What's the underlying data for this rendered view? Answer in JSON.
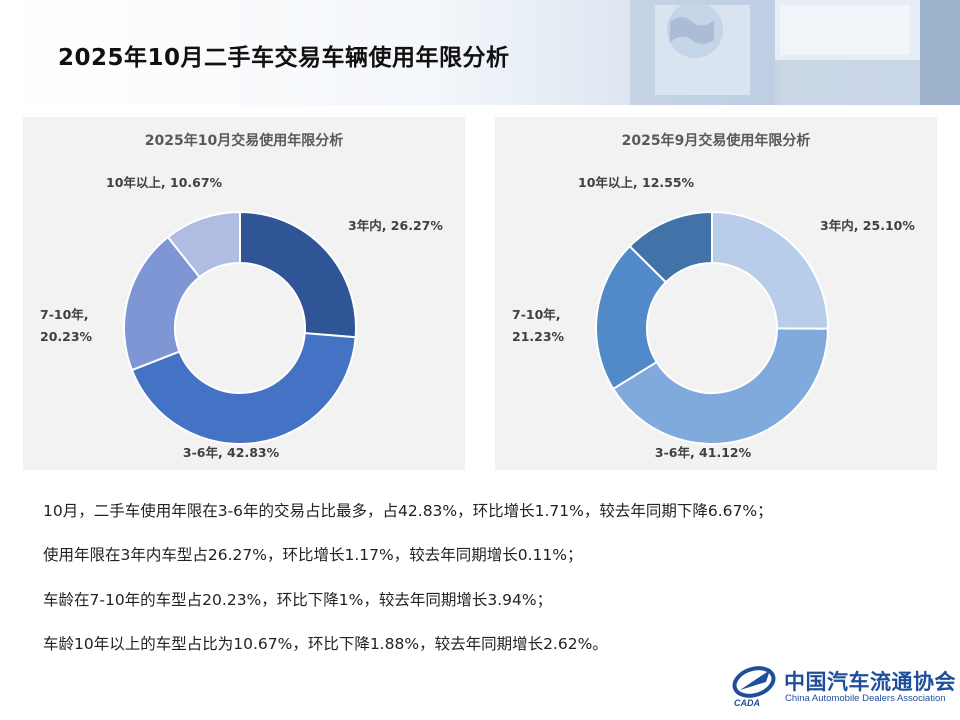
{
  "page": {
    "title": "2025年10月二手车交易车辆使用年限分析"
  },
  "chart_data": [
    {
      "type": "pie",
      "title": "2025年10月交易使用年限分析",
      "categories": [
        "3年内",
        "3-6年",
        "7-10年",
        "10年以上"
      ],
      "values": [
        26.27,
        42.83,
        20.23,
        10.67
      ],
      "labels": [
        [
          "3年内, 26.27%"
        ],
        [
          "3-6年, 42.83%"
        ],
        [
          "7-10年,",
          "20.23%"
        ],
        [
          "10年以上, 10.67%"
        ]
      ],
      "colors": [
        "#2f5597",
        "#4472c4",
        "#7f96d4",
        "#b0bde3"
      ],
      "legend": "none"
    },
    {
      "type": "pie",
      "title": "2025年9月交易使用年限分析",
      "categories": [
        "3年内",
        "3-6年",
        "7-10年",
        "10年以上"
      ],
      "values": [
        25.1,
        41.12,
        21.23,
        12.55
      ],
      "labels": [
        [
          "3年内, 25.10%"
        ],
        [
          "3-6年, 41.12%"
        ],
        [
          "7-10年,",
          "21.23%"
        ],
        [
          "10年以上, 12.55%"
        ]
      ],
      "colors": [
        "#b8cde9",
        "#80aadc",
        "#5289c8",
        "#4273a8"
      ],
      "legend": "none"
    }
  ],
  "summary": [
    "10月，二手车使用年限在3-6年的交易占比最多，占42.83%，环比增长1.71%，较去年同期下降6.67%；",
    "使用年限在3年内车型占26.27%，环比增长1.17%，较去年同期增长0.11%；",
    "车龄在7-10年的车型占20.23%，环比下降1%，较去年同期增长3.94%；",
    "车龄10年以上的车型占比为10.67%，环比下降1.88%，较去年同期增长2.62%。"
  ],
  "logo": {
    "cn": "中国汽车流通协会",
    "en": "China Automobile Dealers Association",
    "mark": "CADA"
  },
  "colors": {
    "panel_bg": "#f2f2f2",
    "logo_blue": "#1f4e9a"
  }
}
